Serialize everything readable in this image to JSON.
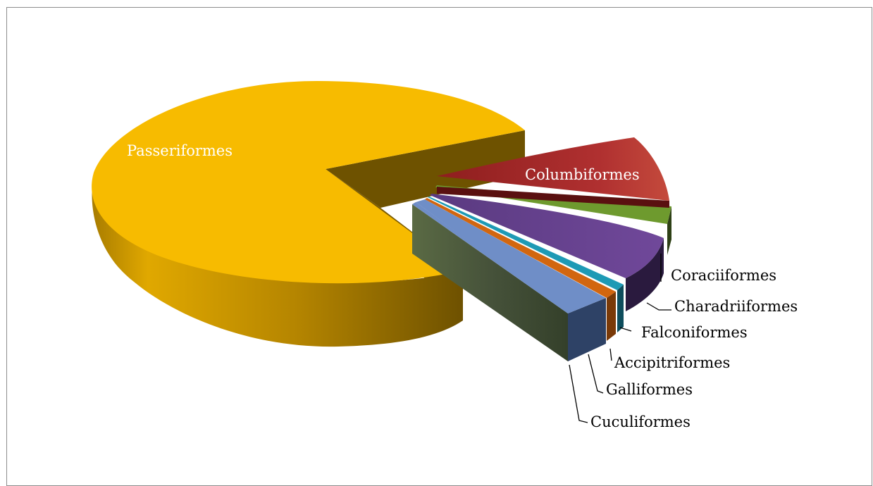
{
  "chart_data": {
    "type": "pie",
    "style": "3d-exploded",
    "legend": "none",
    "labels_on_chart": true,
    "title": "",
    "categories": [
      "Passeriformes",
      "Columbiformes",
      "Coraciiformes",
      "Charadriiformes",
      "Falconiformes",
      "Accipitriformes",
      "Galliformes",
      "Cuculiformes"
    ],
    "values": [
      70.0,
      8.0,
      2.2,
      7.0,
      0.5,
      0.8,
      3.4,
      8.1
    ],
    "colors": [
      "#f7bb00",
      "#a52a2a",
      "#6e9a2e",
      "#6a448e",
      "#1e9ab5",
      "#d2660f",
      "#6f8ec7",
      "#4a5a36"
    ]
  }
}
